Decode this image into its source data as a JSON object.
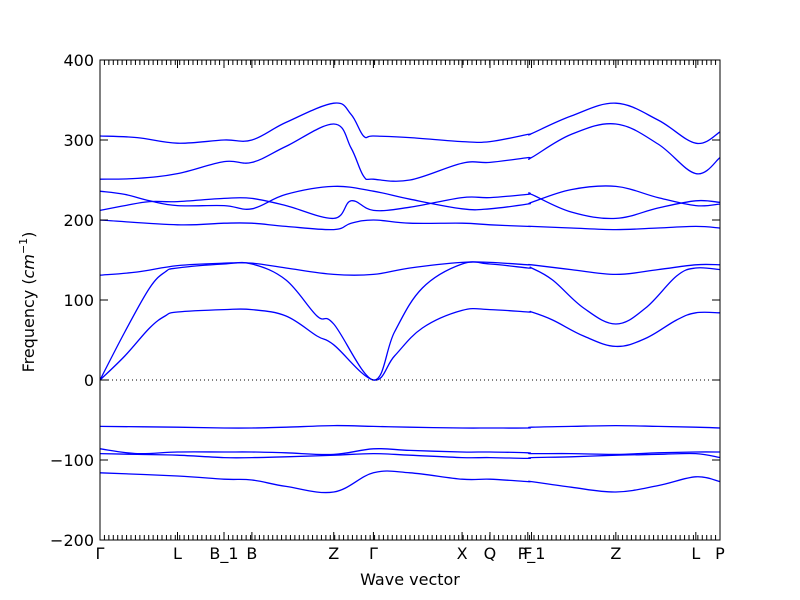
{
  "chart_data": {
    "type": "line",
    "xlabel": "Wave vector",
    "ylabel": "Frequency ($cm^{-1}$)",
    "ylim": [
      -200,
      400
    ],
    "yticks": [
      -200,
      -100,
      0,
      100,
      200,
      300,
      400
    ],
    "xlim": [
      0,
      1
    ],
    "zero_line": true,
    "high_symmetry_points": [
      {
        "label": "Γ",
        "x": 0.0
      },
      {
        "label": "L",
        "x": 0.125
      },
      {
        "label": "B_1",
        "x": 0.2
      },
      {
        "label": "B",
        "x": 0.245
      },
      {
        "label": "Z",
        "x": 0.377
      },
      {
        "label": "Γ",
        "x": 0.441
      },
      {
        "label": "X",
        "x": 0.584
      },
      {
        "label": "Q",
        "x": 0.629
      },
      {
        "label": "F",
        "x": 0.69
      },
      {
        "label": "P_1",
        "x": 0.696
      },
      {
        "label": "Z",
        "x": 0.832
      },
      {
        "label": "L",
        "x": 0.961
      },
      {
        "label": "P",
        "x": 1.0
      }
    ],
    "series": [
      {
        "x": [
          0,
          0.125,
          0.2,
          0.245,
          0.3,
          0.377,
          0.441,
          0.5,
          0.584,
          0.629,
          0.69,
          0.696,
          0.76,
          0.832,
          0.9,
          0.961,
          1.0
        ],
        "y": [
          -116,
          -120,
          -124,
          -125,
          -133,
          -140,
          -116,
          -116,
          -124,
          -124,
          -127,
          -127,
          -134,
          -140,
          -132,
          -121,
          -127
        ]
      },
      {
        "x": [
          0,
          0.06,
          0.125,
          0.2,
          0.245,
          0.3,
          0.377,
          0.441,
          0.5,
          0.584,
          0.629,
          0.69,
          0.696,
          0.76,
          0.832,
          0.9,
          0.961,
          1.0
        ],
        "y": [
          -92,
          -93,
          -94,
          -97,
          -97,
          -96,
          -94,
          -92,
          -94,
          -97,
          -97,
          -98,
          -97,
          -96,
          -94,
          -93,
          -92,
          -97
        ]
      },
      {
        "x": [
          0,
          0.06,
          0.125,
          0.2,
          0.245,
          0.3,
          0.377,
          0.441,
          0.5,
          0.584,
          0.629,
          0.69,
          0.696,
          0.76,
          0.832,
          0.9,
          0.961,
          1.0
        ],
        "y": [
          -86,
          -92,
          -90,
          -90,
          -90,
          -91,
          -93,
          -86,
          -88,
          -90,
          -90,
          -91,
          -92,
          -92,
          -93,
          -91,
          -90,
          -90
        ]
      },
      {
        "x": [
          0,
          0.125,
          0.2,
          0.245,
          0.3,
          0.377,
          0.441,
          0.5,
          0.584,
          0.629,
          0.69,
          0.696,
          0.76,
          0.832,
          0.9,
          0.961,
          1.0
        ],
        "y": [
          -58,
          -59,
          -60,
          -60,
          -59,
          -57,
          -58,
          -59,
          -60,
          -60,
          -60,
          -59,
          -58,
          -57,
          -58,
          -59,
          -60
        ]
      },
      {
        "x": [
          0,
          0.04,
          0.08,
          0.105,
          0.125,
          0.2,
          0.245,
          0.3,
          0.35,
          0.377,
          0.441,
          0.475,
          0.52,
          0.584,
          0.629,
          0.69,
          0.696,
          0.73,
          0.78,
          0.832,
          0.88,
          0.93,
          0.961,
          1.0
        ],
        "y": [
          0,
          30,
          65,
          80,
          85,
          88,
          88,
          80,
          55,
          44,
          0,
          30,
          65,
          87,
          88,
          85,
          85,
          75,
          55,
          42,
          52,
          75,
          84,
          84
        ]
      },
      {
        "x": [
          0,
          0.04,
          0.08,
          0.105,
          0.125,
          0.2,
          0.245,
          0.3,
          0.35,
          0.377,
          0.441,
          0.475,
          0.52,
          0.584,
          0.629,
          0.69,
          0.696,
          0.73,
          0.78,
          0.832,
          0.88,
          0.93,
          0.961,
          1.0
        ],
        "y": [
          0,
          60,
          115,
          135,
          140,
          145,
          145,
          125,
          80,
          70,
          0,
          60,
          115,
          145,
          145,
          140,
          140,
          125,
          90,
          70,
          90,
          130,
          140,
          138
        ]
      },
      {
        "x": [
          0,
          0.06,
          0.125,
          0.2,
          0.245,
          0.3,
          0.377,
          0.441,
          0.5,
          0.584,
          0.629,
          0.69,
          0.696,
          0.76,
          0.832,
          0.9,
          0.961,
          1.0
        ],
        "y": [
          131,
          135,
          143,
          146,
          146,
          140,
          132,
          132,
          140,
          147,
          147,
          144,
          144,
          138,
          132,
          138,
          144,
          144
        ]
      },
      {
        "x": [
          0,
          0.125,
          0.2,
          0.245,
          0.3,
          0.377,
          0.405,
          0.441,
          0.5,
          0.584,
          0.629,
          0.69,
          0.696,
          0.76,
          0.832,
          0.9,
          0.961,
          1.0
        ],
        "y": [
          200,
          194,
          196,
          196,
          192,
          188,
          196,
          200,
          196,
          196,
          194,
          192,
          192,
          190,
          188,
          190,
          192,
          190
        ]
      },
      {
        "x": [
          0,
          0.04,
          0.08,
          0.125,
          0.2,
          0.245,
          0.3,
          0.377,
          0.405,
          0.441,
          0.5,
          0.584,
          0.629,
          0.69,
          0.696,
          0.76,
          0.832,
          0.9,
          0.961,
          1.0
        ],
        "y": [
          212,
          218,
          223,
          223,
          227,
          227,
          218,
          202,
          224,
          212,
          216,
          228,
          228,
          232,
          232,
          210,
          202,
          215,
          224,
          222
        ]
      },
      {
        "x": [
          0,
          0.04,
          0.08,
          0.125,
          0.2,
          0.245,
          0.3,
          0.377,
          0.441,
          0.5,
          0.584,
          0.629,
          0.69,
          0.696,
          0.76,
          0.832,
          0.9,
          0.961,
          1.0
        ],
        "y": [
          236,
          232,
          224,
          218,
          218,
          214,
          232,
          242,
          236,
          226,
          214,
          214,
          220,
          222,
          238,
          242,
          228,
          218,
          220
        ]
      },
      {
        "x": [
          0,
          0.06,
          0.125,
          0.2,
          0.245,
          0.3,
          0.377,
          0.405,
          0.425,
          0.441,
          0.5,
          0.584,
          0.629,
          0.69,
          0.696,
          0.76,
          0.832,
          0.9,
          0.961,
          1.0
        ],
        "y": [
          251,
          252,
          258,
          273,
          272,
          292,
          320,
          290,
          255,
          251,
          250,
          271,
          272,
          278,
          278,
          307,
          320,
          295,
          258,
          278
        ]
      },
      {
        "x": [
          0,
          0.06,
          0.125,
          0.2,
          0.245,
          0.3,
          0.377,
          0.405,
          0.425,
          0.441,
          0.5,
          0.584,
          0.629,
          0.69,
          0.696,
          0.76,
          0.832,
          0.9,
          0.961,
          1.0
        ],
        "y": [
          305,
          303,
          296,
          300,
          300,
          322,
          346,
          332,
          305,
          305,
          303,
          298,
          298,
          307,
          308,
          330,
          346,
          325,
          296,
          310
        ]
      }
    ]
  }
}
